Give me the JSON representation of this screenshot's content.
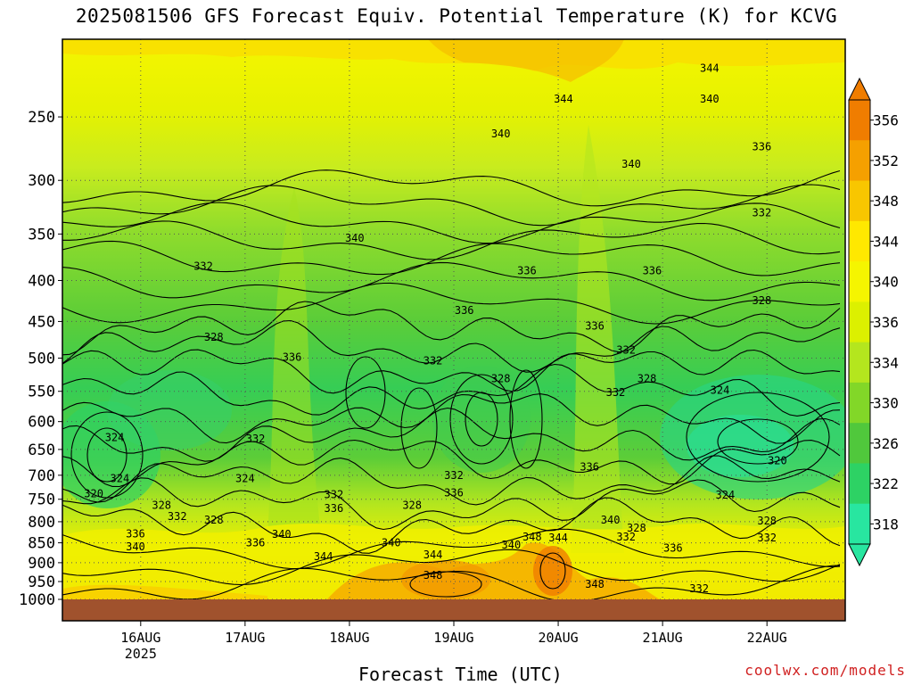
{
  "title": "2025081506 GFS Forecast Equiv. Potential Temperature (K) for KCVG",
  "xlabel": "Forecast Time (UTC)",
  "credit": "coolwx.com/models",
  "chart_data": {
    "type": "heatmap",
    "title": "2025081506 GFS Forecast Equiv. Potential Temperature (K) for KCVG",
    "xlabel": "Forecast Time (UTC)",
    "ylabel": "",
    "x_ticks": [
      {
        "label": "16AUG",
        "sub": "2025",
        "day": 16
      },
      {
        "label": "17AUG",
        "sub": "",
        "day": 17
      },
      {
        "label": "18AUG",
        "sub": "",
        "day": 18
      },
      {
        "label": "19AUG",
        "sub": "",
        "day": 19
      },
      {
        "label": "20AUG",
        "sub": "",
        "day": 20
      },
      {
        "label": "21AUG",
        "sub": "",
        "day": 21
      },
      {
        "label": "22AUG",
        "sub": "",
        "day": 22
      }
    ],
    "xlim_days": [
      15.25,
      22.75
    ],
    "y_ticks": [
      250,
      300,
      350,
      400,
      450,
      500,
      550,
      600,
      650,
      700,
      750,
      800,
      850,
      900,
      950,
      1000
    ],
    "ylim_hPa": [
      200,
      1000
    ],
    "y_scale": "log-pressure (inverted)",
    "colorbar": {
      "labels": [
        356,
        352,
        348,
        344,
        340,
        336,
        334,
        330,
        326,
        322,
        318
      ],
      "colors": [
        "#f07d00",
        "#f5a000",
        "#f8c600",
        "#ffe800",
        "#f5f500",
        "#dcf000",
        "#b4e61e",
        "#82d728",
        "#50c83c",
        "#2dd264",
        "#28e6a0"
      ]
    },
    "contour_labels": [
      {
        "text": "344",
        "day": 21.45,
        "p": 218
      },
      {
        "text": "344",
        "day": 20.05,
        "p": 238
      },
      {
        "text": "340",
        "day": 21.45,
        "p": 238
      },
      {
        "text": "340",
        "day": 19.45,
        "p": 263
      },
      {
        "text": "336",
        "day": 21.95,
        "p": 273
      },
      {
        "text": "340",
        "day": 20.7,
        "p": 287
      },
      {
        "text": "332",
        "day": 21.95,
        "p": 330
      },
      {
        "text": "340",
        "day": 18.05,
        "p": 355
      },
      {
        "text": "332",
        "day": 16.6,
        "p": 385
      },
      {
        "text": "336",
        "day": 19.7,
        "p": 390
      },
      {
        "text": "336",
        "day": 20.9,
        "p": 390
      },
      {
        "text": "328",
        "day": 21.95,
        "p": 425
      },
      {
        "text": "336",
        "day": 19.1,
        "p": 437
      },
      {
        "text": "336",
        "day": 20.35,
        "p": 457
      },
      {
        "text": "328",
        "day": 16.7,
        "p": 472
      },
      {
        "text": "332",
        "day": 20.65,
        "p": 490
      },
      {
        "text": "336",
        "day": 17.45,
        "p": 500
      },
      {
        "text": "332",
        "day": 18.8,
        "p": 505
      },
      {
        "text": "328",
        "day": 19.45,
        "p": 532
      },
      {
        "text": "328",
        "day": 20.85,
        "p": 532
      },
      {
        "text": "324",
        "day": 21.55,
        "p": 550
      },
      {
        "text": "332",
        "day": 20.55,
        "p": 553
      },
      {
        "text": "324",
        "day": 15.75,
        "p": 630
      },
      {
        "text": "332",
        "day": 17.1,
        "p": 632
      },
      {
        "text": "320",
        "day": 22.1,
        "p": 673
      },
      {
        "text": "336",
        "day": 20.3,
        "p": 685
      },
      {
        "text": "332",
        "day": 19.0,
        "p": 702
      },
      {
        "text": "324",
        "day": 17.0,
        "p": 708
      },
      {
        "text": "324",
        "day": 15.8,
        "p": 708
      },
      {
        "text": "336",
        "day": 19.0,
        "p": 738
      },
      {
        "text": "320",
        "day": 15.55,
        "p": 740
      },
      {
        "text": "332",
        "day": 17.85,
        "p": 742
      },
      {
        "text": "324",
        "day": 21.6,
        "p": 743
      },
      {
        "text": "328",
        "day": 16.2,
        "p": 765
      },
      {
        "text": "328",
        "day": 18.6,
        "p": 765
      },
      {
        "text": "336",
        "day": 17.85,
        "p": 772
      },
      {
        "text": "332",
        "day": 16.35,
        "p": 790
      },
      {
        "text": "328",
        "day": 16.7,
        "p": 798
      },
      {
        "text": "340",
        "day": 20.5,
        "p": 798
      },
      {
        "text": "328",
        "day": 22.0,
        "p": 800
      },
      {
        "text": "328",
        "day": 20.75,
        "p": 817
      },
      {
        "text": "336",
        "day": 15.95,
        "p": 830
      },
      {
        "text": "340",
        "day": 17.35,
        "p": 832
      },
      {
        "text": "332",
        "day": 20.65,
        "p": 838
      },
      {
        "text": "348",
        "day": 19.75,
        "p": 838
      },
      {
        "text": "344",
        "day": 20.0,
        "p": 840
      },
      {
        "text": "332",
        "day": 22.0,
        "p": 840
      },
      {
        "text": "336",
        "day": 17.1,
        "p": 852
      },
      {
        "text": "340",
        "day": 18.4,
        "p": 852
      },
      {
        "text": "340",
        "day": 19.55,
        "p": 857
      },
      {
        "text": "340",
        "day": 15.95,
        "p": 862
      },
      {
        "text": "336",
        "day": 21.1,
        "p": 865
      },
      {
        "text": "344",
        "day": 17.75,
        "p": 887
      },
      {
        "text": "344",
        "day": 18.8,
        "p": 882
      },
      {
        "text": "348",
        "day": 18.8,
        "p": 935
      },
      {
        "text": "348",
        "day": 20.35,
        "p": 960
      },
      {
        "text": "332",
        "day": 21.35,
        "p": 972
      }
    ]
  }
}
